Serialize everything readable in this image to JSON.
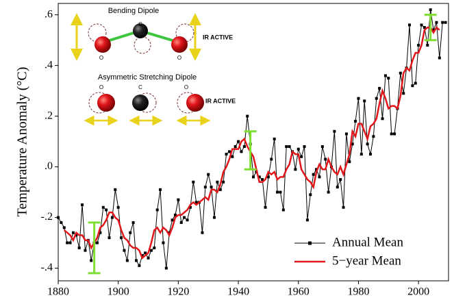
{
  "chart_data": {
    "type": "line",
    "ylabel": "Temperature Anomaly (°C)",
    "x": [
      1880,
      1881,
      1882,
      1883,
      1884,
      1885,
      1886,
      1887,
      1888,
      1889,
      1890,
      1891,
      1892,
      1893,
      1894,
      1895,
      1896,
      1897,
      1898,
      1899,
      1900,
      1901,
      1902,
      1903,
      1904,
      1905,
      1906,
      1907,
      1908,
      1909,
      1910,
      1911,
      1912,
      1913,
      1914,
      1915,
      1916,
      1917,
      1918,
      1919,
      1920,
      1921,
      1922,
      1923,
      1924,
      1925,
      1926,
      1927,
      1928,
      1929,
      1930,
      1931,
      1932,
      1933,
      1934,
      1935,
      1936,
      1937,
      1938,
      1939,
      1940,
      1941,
      1942,
      1943,
      1944,
      1945,
      1946,
      1947,
      1948,
      1949,
      1950,
      1951,
      1952,
      1953,
      1954,
      1955,
      1956,
      1957,
      1958,
      1959,
      1960,
      1961,
      1962,
      1963,
      1964,
      1965,
      1966,
      1967,
      1968,
      1969,
      1970,
      1971,
      1972,
      1973,
      1974,
      1975,
      1976,
      1977,
      1978,
      1979,
      1980,
      1981,
      1982,
      1983,
      1984,
      1985,
      1986,
      1987,
      1988,
      1989,
      1990,
      1991,
      1992,
      1993,
      1994,
      1995,
      1996,
      1997,
      1998,
      1999,
      2000,
      2001,
      2002,
      2003,
      2004,
      2005,
      2006,
      2007,
      2008,
      2009
    ],
    "series": [
      {
        "name": "Annual Mean",
        "color": "#000000",
        "marker": "square",
        "values": [
          -0.2,
          -0.22,
          -0.24,
          -0.3,
          -0.3,
          -0.26,
          -0.27,
          -0.32,
          -0.15,
          -0.33,
          -0.29,
          -0.37,
          -0.3,
          -0.3,
          -0.26,
          -0.16,
          -0.17,
          -0.28,
          -0.2,
          -0.09,
          -0.16,
          -0.28,
          -0.33,
          -0.37,
          -0.26,
          -0.22,
          -0.37,
          -0.39,
          -0.35,
          -0.34,
          -0.36,
          -0.33,
          -0.32,
          -0.17,
          -0.09,
          -0.3,
          -0.4,
          -0.26,
          -0.21,
          -0.19,
          -0.13,
          -0.22,
          -0.2,
          -0.21,
          -0.16,
          -0.06,
          -0.14,
          -0.14,
          -0.26,
          -0.08,
          -0.03,
          -0.08,
          -0.2,
          -0.06,
          -0.09,
          -0.06,
          0.05,
          0.06,
          0.04,
          0.08,
          0.1,
          0.06,
          0.08,
          0.2,
          0.09,
          -0.04,
          -0.02,
          -0.04,
          -0.05,
          -0.16,
          -0.04,
          0.03,
          0.11,
          -0.1,
          -0.1,
          -0.17,
          0.08,
          0.08,
          0.06,
          -0.01,
          0.07,
          0.04,
          0.08,
          -0.21,
          -0.11,
          -0.03,
          -0.01,
          -0.04,
          0.08,
          0.03,
          -0.1,
          0,
          0.14,
          -0.08,
          -0.05,
          -0.16,
          0.13,
          0.02,
          0.09,
          0.18,
          0.27,
          0.05,
          0.26,
          0.09,
          0.05,
          0.12,
          0.27,
          0.31,
          0.19,
          0.36,
          0.35,
          0.13,
          0.13,
          0.23,
          0.37,
          0.29,
          0.39,
          0.56,
          0.32,
          0.33,
          0.48,
          0.56,
          0.55,
          0.48,
          0.62,
          0.54,
          0.57,
          0.43,
          0.57,
          0.57
        ]
      },
      {
        "name": "5−year Mean",
        "color": "#e0161b",
        "values": [
          null,
          null,
          -0.25,
          -0.26,
          -0.27,
          -0.29,
          -0.26,
          -0.27,
          -0.27,
          -0.29,
          -0.29,
          -0.32,
          -0.3,
          -0.28,
          -0.24,
          -0.23,
          -0.21,
          -0.18,
          -0.18,
          -0.2,
          -0.21,
          -0.25,
          -0.28,
          -0.29,
          -0.31,
          -0.32,
          -0.32,
          -0.33,
          -0.36,
          -0.35,
          -0.34,
          -0.3,
          -0.25,
          -0.24,
          -0.26,
          -0.24,
          -0.25,
          -0.27,
          -0.24,
          -0.2,
          -0.19,
          -0.19,
          -0.18,
          -0.17,
          -0.15,
          -0.14,
          -0.15,
          -0.14,
          -0.13,
          -0.12,
          -0.13,
          -0.09,
          -0.09,
          -0.1,
          -0.07,
          -0.02,
          0,
          0.03,
          0.07,
          0.07,
          0.07,
          0.1,
          0.11,
          0.08,
          0.06,
          0.04,
          -0.01,
          -0.06,
          -0.06,
          -0.05,
          -0.02,
          -0.03,
          -0.02,
          -0.05,
          -0.04,
          -0.04,
          -0.01,
          0.01,
          0.06,
          0.05,
          0.05,
          -0.01,
          -0.03,
          -0.05,
          -0.06,
          -0.08,
          -0.02,
          0.01,
          -0.01,
          -0.01,
          0.03,
          0,
          -0.02,
          -0.03,
          0,
          -0.03,
          0.01,
          0.05,
          0.14,
          0.12,
          0.17,
          0.17,
          0.14,
          0.11,
          0.16,
          0.17,
          0.19,
          0.25,
          0.3,
          0.27,
          0.23,
          0.24,
          0.24,
          0.23,
          0.28,
          0.37,
          0.39,
          0.38,
          0.42,
          0.45,
          0.45,
          0.48,
          0.54,
          0.55,
          0.55,
          0.53,
          0.55,
          0.54,
          null,
          null
        ]
      }
    ],
    "error_bars": {
      "color": "#7fe033",
      "items": [
        {
          "x": 1892,
          "low": -0.42,
          "high": -0.22
        },
        {
          "x": 1944,
          "low": -0.01,
          "high": 0.14
        },
        {
          "x": 2004,
          "low": 0.5,
          "high": 0.6
        }
      ]
    },
    "xlim": [
      1880,
      2010
    ],
    "ylim": [
      -0.45,
      0.645
    ],
    "xticks": [
      1880,
      1900,
      1920,
      1940,
      1960,
      1980,
      2000
    ],
    "yticks": [
      {
        "value": -0.4,
        "label": "-.4"
      },
      {
        "value": -0.2,
        "label": "-.2"
      },
      {
        "value": 0,
        "label": ".0"
      },
      {
        "value": 0.2,
        "label": ".2"
      },
      {
        "value": 0.4,
        "label": ".4"
      },
      {
        "value": 0.6,
        "label": ".6"
      }
    ],
    "legend": "lower right",
    "inset": {
      "bending": {
        "title": "Bending Dipole",
        "labels": [
          "O",
          "C",
          "O"
        ],
        "note": "IR ACTIVE"
      },
      "stretching": {
        "title": "Asymmetric Stretching Dipole",
        "labels": [
          "O",
          "C",
          "O"
        ],
        "note": "IR ACTIVE"
      }
    }
  }
}
